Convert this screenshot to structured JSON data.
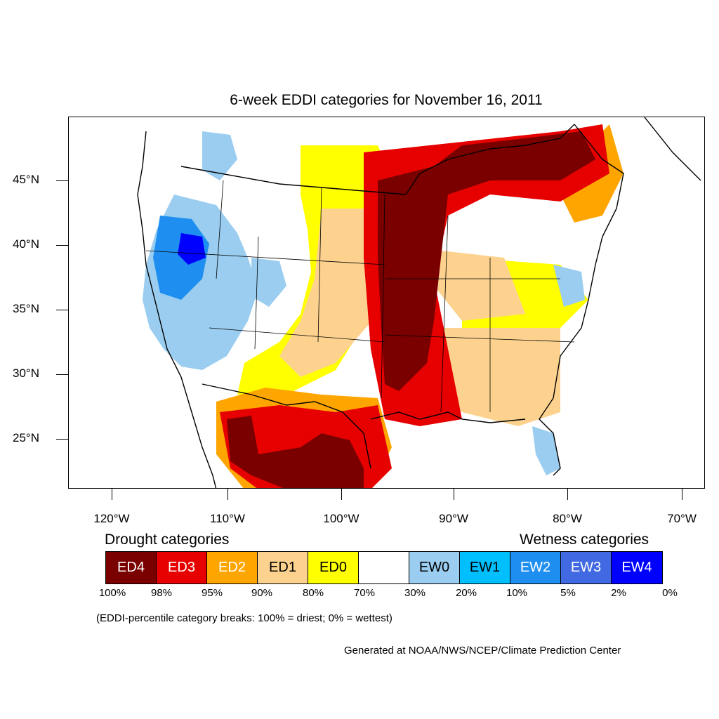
{
  "title": "6-week EDDI categories for November 16, 2011",
  "latitude_labels": [
    "45°N",
    "40°N",
    "35°N",
    "30°N",
    "25°N"
  ],
  "longitude_labels": [
    "120°W",
    "110°W",
    "100°W",
    "90°W",
    "80°W",
    "70°W"
  ],
  "legend": {
    "drought_heading": "Drought categories",
    "wetness_heading": "Wetness categories",
    "categories": [
      {
        "label": "ED4",
        "color": "#7a0000",
        "text_color": "#ffffff"
      },
      {
        "label": "ED3",
        "color": "#e60000",
        "text_color": "#ffffff"
      },
      {
        "label": "ED2",
        "color": "#ffa500",
        "text_color": "#ffffff"
      },
      {
        "label": "ED1",
        "color": "#fcd28e",
        "text_color": "#000000"
      },
      {
        "label": "ED0",
        "color": "#ffff00",
        "text_color": "#000000"
      },
      {
        "label": "",
        "color": "#ffffff",
        "text_color": "#000000"
      },
      {
        "label": "EW0",
        "color": "#9acdf0",
        "text_color": "#000000"
      },
      {
        "label": "EW1",
        "color": "#00bfff",
        "text_color": "#000000"
      },
      {
        "label": "EW2",
        "color": "#1e8ff0",
        "text_color": "#ffffff"
      },
      {
        "label": "EW3",
        "color": "#4169e1",
        "text_color": "#ffffff"
      },
      {
        "label": "EW4",
        "color": "#0000ff",
        "text_color": "#ffffff"
      }
    ],
    "percentile_breaks": [
      "100%",
      "98%",
      "95%",
      "90%",
      "80%",
      "70%",
      "30%",
      "20%",
      "10%",
      "5%",
      "2%",
      "0%"
    ]
  },
  "note": "(EDDI-percentile category breaks: 100% = driest; 0% = wettest)",
  "credit": "Generated at NOAA/NWS/NCEP/Climate Prediction Center"
}
